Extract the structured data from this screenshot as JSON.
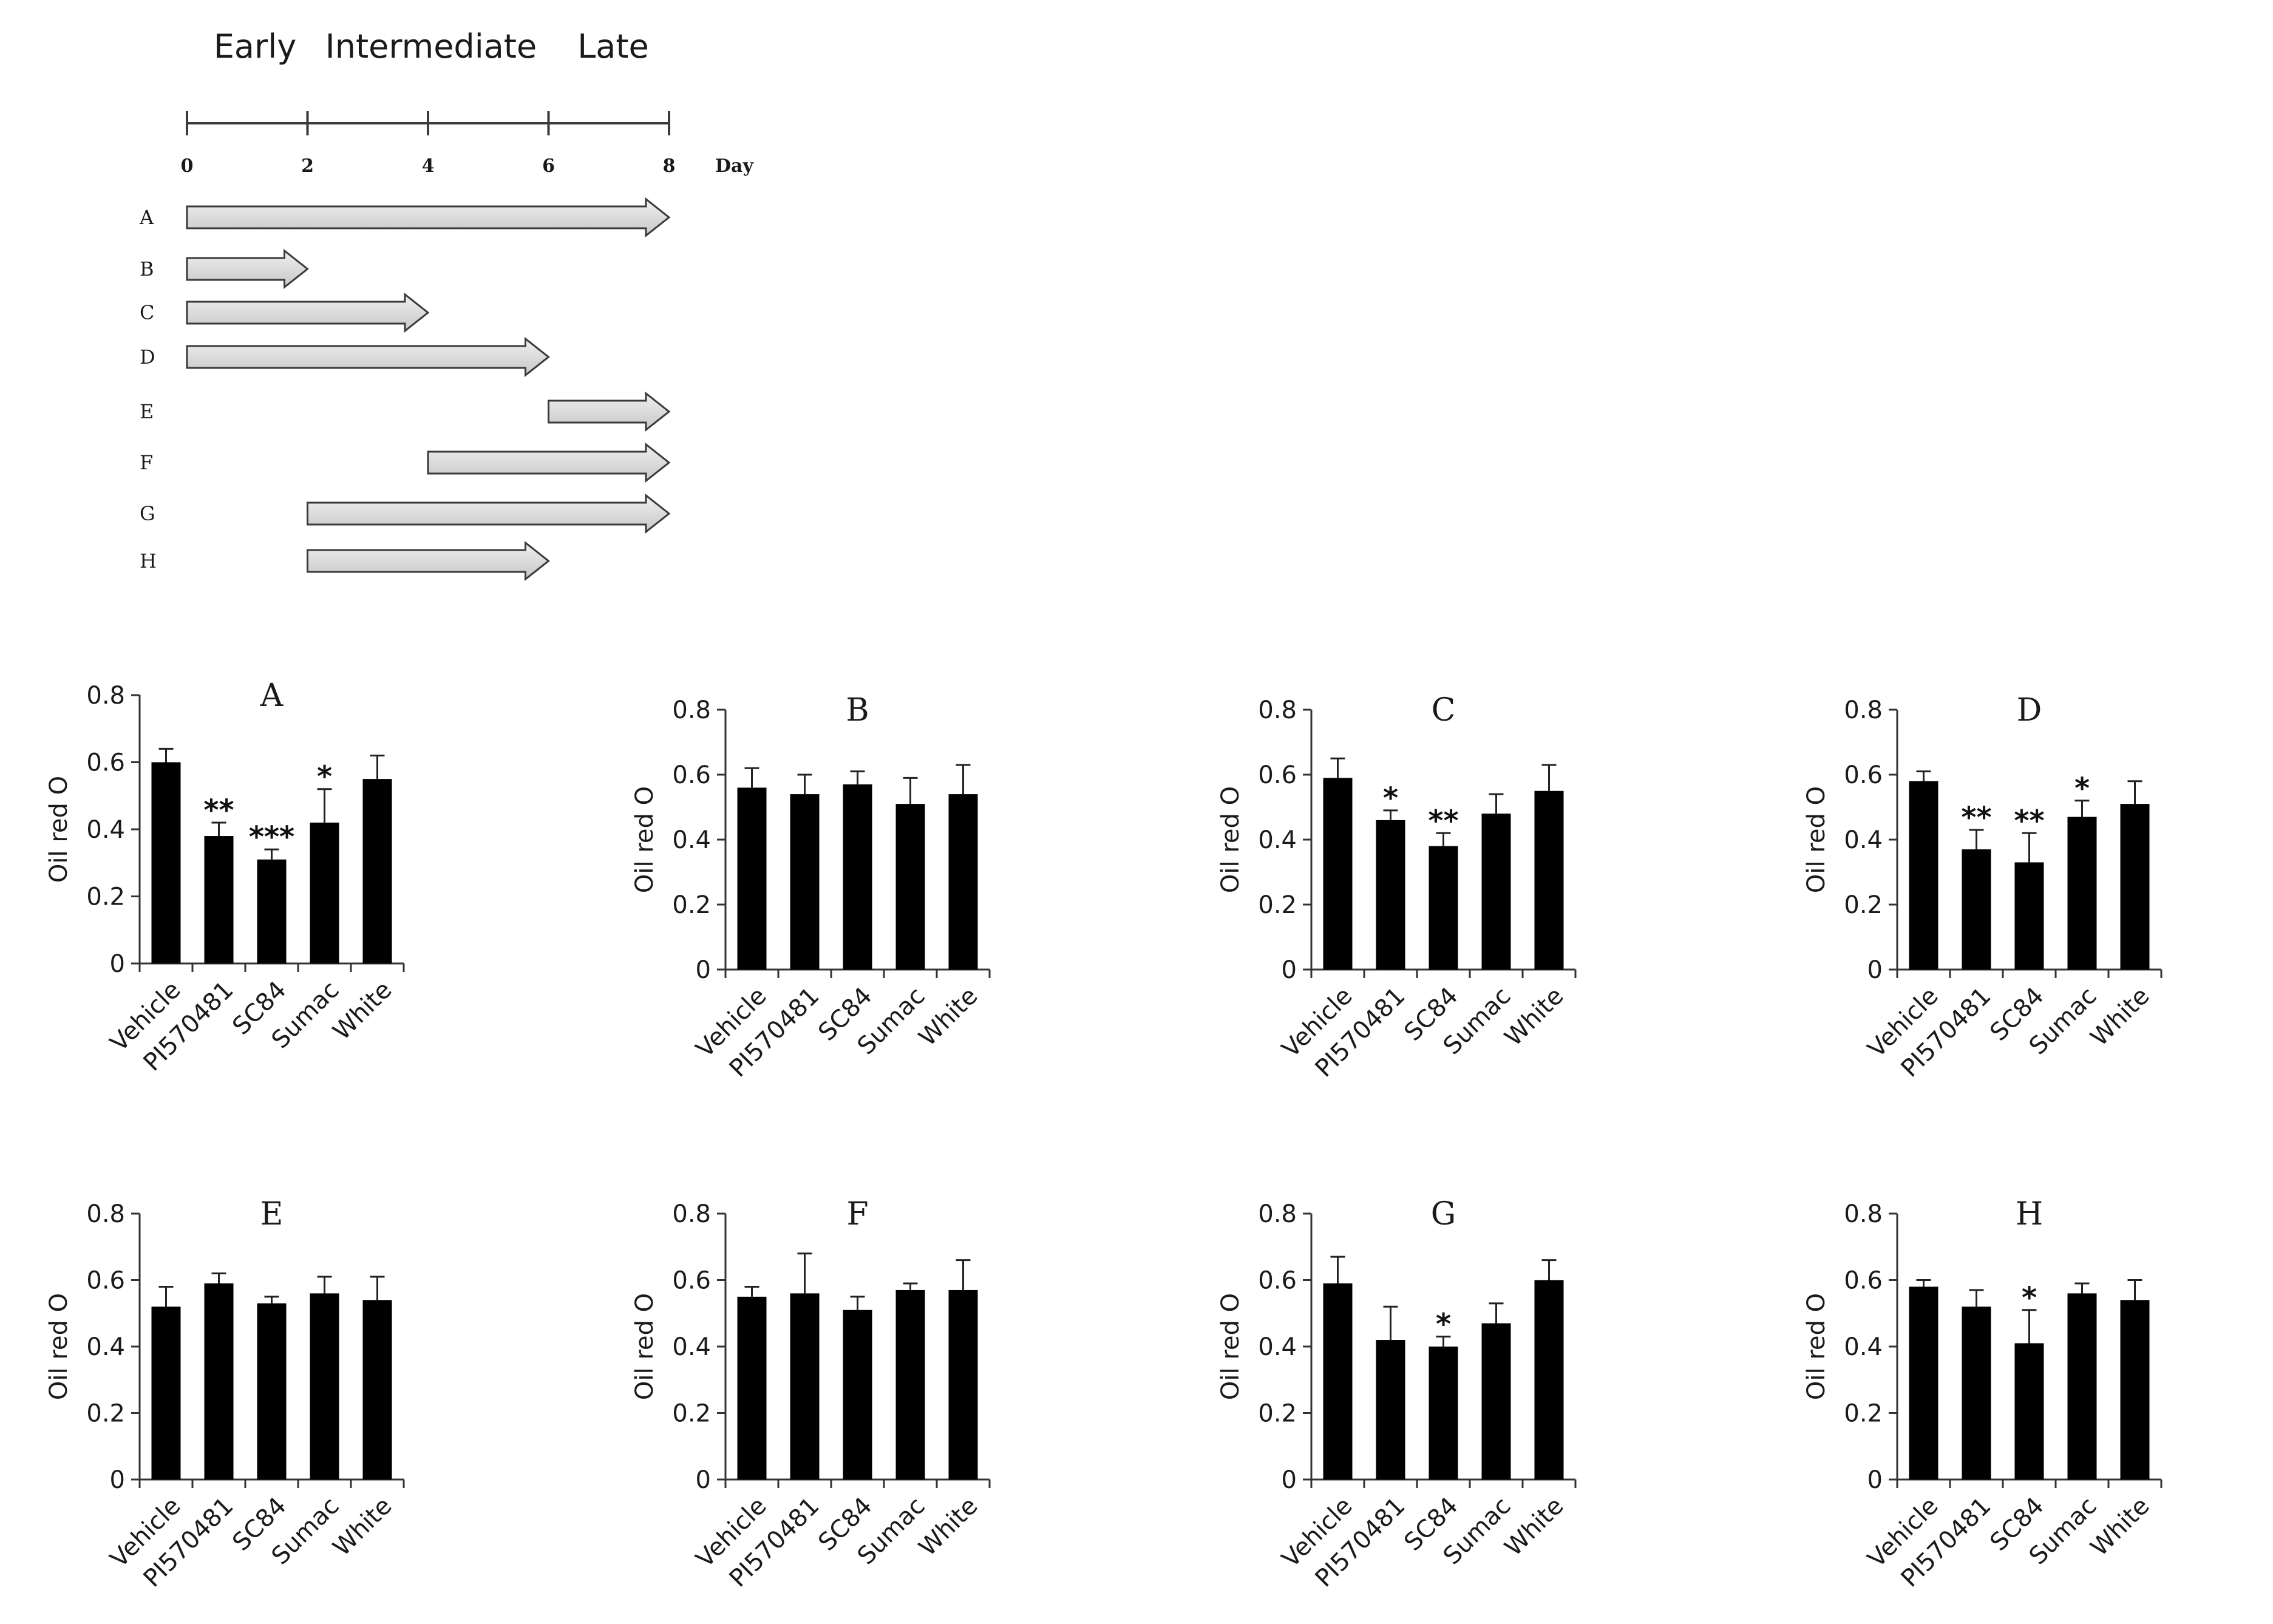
{
  "timeline": {
    "phases": [
      "Early",
      "Intermediate",
      "Late"
    ],
    "day_ticks": [
      "0",
      "2",
      "4",
      "6",
      "8"
    ],
    "day_label": "Day",
    "day_range": [
      0,
      8
    ],
    "treatments": [
      {
        "label": "A",
        "start": 0,
        "end": 8
      },
      {
        "label": "B",
        "start": 0,
        "end": 2
      },
      {
        "label": "C",
        "start": 0,
        "end": 4
      },
      {
        "label": "D",
        "start": 0,
        "end": 6
      },
      {
        "label": "E",
        "start": 6,
        "end": 8
      },
      {
        "label": "F",
        "start": 4,
        "end": 8
      },
      {
        "label": "G",
        "start": 2,
        "end": 8
      },
      {
        "label": "H",
        "start": 2,
        "end": 6
      }
    ],
    "colors": {
      "arrow_fill": "#d9d9d9",
      "arrow_stroke": "#3a3a3a"
    }
  },
  "colors": {
    "bar": "#000000",
    "axis": "#333333",
    "text": "#1a1a1a"
  },
  "chart_data": [
    {
      "type": "bar",
      "title": "A",
      "xlabel": "",
      "ylabel": "Oil red O",
      "ylim": [
        0,
        0.8
      ],
      "yticks": [
        "0",
        "0.2",
        "0.4",
        "0.6",
        "0.8"
      ],
      "categories": [
        "Vehicle",
        "PI570481",
        "SC84",
        "Sumac",
        "White"
      ],
      "values": [
        0.6,
        0.38,
        0.31,
        0.42,
        0.55
      ],
      "errors": [
        0.04,
        0.04,
        0.03,
        0.1,
        0.07
      ],
      "significance": [
        "",
        "**",
        "***",
        "*",
        ""
      ]
    },
    {
      "type": "bar",
      "title": "B",
      "xlabel": "",
      "ylabel": "Oil red O",
      "ylim": [
        0,
        0.8
      ],
      "yticks": [
        "0",
        "0.2",
        "0.4",
        "0.6",
        "0.8"
      ],
      "categories": [
        "Vehicle",
        "PI570481",
        "SC84",
        "Sumac",
        "White"
      ],
      "values": [
        0.56,
        0.54,
        0.57,
        0.51,
        0.54
      ],
      "errors": [
        0.06,
        0.06,
        0.04,
        0.08,
        0.09
      ],
      "significance": [
        "",
        "",
        "",
        "",
        ""
      ]
    },
    {
      "type": "bar",
      "title": "C",
      "xlabel": "",
      "ylabel": "Oil red O",
      "ylim": [
        0,
        0.8
      ],
      "yticks": [
        "0",
        "0.2",
        "0.4",
        "0.6",
        "0.8"
      ],
      "categories": [
        "Vehicle",
        "PI570481",
        "SC84",
        "Sumac",
        "White"
      ],
      "values": [
        0.59,
        0.46,
        0.38,
        0.48,
        0.55
      ],
      "errors": [
        0.06,
        0.03,
        0.04,
        0.06,
        0.08
      ],
      "significance": [
        "",
        "*",
        "**",
        "",
        ""
      ]
    },
    {
      "type": "bar",
      "title": "D",
      "xlabel": "",
      "ylabel": "Oil red O",
      "ylim": [
        0,
        0.8
      ],
      "yticks": [
        "0",
        "0.2",
        "0.4",
        "0.6",
        "0.8"
      ],
      "categories": [
        "Vehicle",
        "PI570481",
        "SC84",
        "Sumac",
        "White"
      ],
      "values": [
        0.58,
        0.37,
        0.33,
        0.47,
        0.51
      ],
      "errors": [
        0.03,
        0.06,
        0.09,
        0.05,
        0.07
      ],
      "significance": [
        "",
        "**",
        "**",
        "*",
        ""
      ]
    },
    {
      "type": "bar",
      "title": "E",
      "xlabel": "",
      "ylabel": "Oil red O",
      "ylim": [
        0,
        0.8
      ],
      "yticks": [
        "0",
        "0.2",
        "0.4",
        "0.6",
        "0.8"
      ],
      "categories": [
        "Vehicle",
        "PI570481",
        "SC84",
        "Sumac",
        "White"
      ],
      "values": [
        0.52,
        0.59,
        0.53,
        0.56,
        0.54
      ],
      "errors": [
        0.06,
        0.03,
        0.02,
        0.05,
        0.07
      ],
      "significance": [
        "",
        "",
        "",
        "",
        ""
      ]
    },
    {
      "type": "bar",
      "title": "F",
      "xlabel": "",
      "ylabel": "Oil red O",
      "ylim": [
        0,
        0.8
      ],
      "yticks": [
        "0",
        "0.2",
        "0.4",
        "0.6",
        "0.8"
      ],
      "categories": [
        "Vehicle",
        "PI570481",
        "SC84",
        "Sumac",
        "White"
      ],
      "values": [
        0.55,
        0.56,
        0.51,
        0.57,
        0.57
      ],
      "errors": [
        0.03,
        0.12,
        0.04,
        0.02,
        0.09
      ],
      "significance": [
        "",
        "",
        "",
        "",
        ""
      ]
    },
    {
      "type": "bar",
      "title": "G",
      "xlabel": "",
      "ylabel": "Oil red O",
      "ylim": [
        0,
        0.8
      ],
      "yticks": [
        "0",
        "0.2",
        "0.4",
        "0.6",
        "0.8"
      ],
      "categories": [
        "Vehicle",
        "PI570481",
        "SC84",
        "Sumac",
        "White"
      ],
      "values": [
        0.59,
        0.42,
        0.4,
        0.47,
        0.6
      ],
      "errors": [
        0.08,
        0.1,
        0.03,
        0.06,
        0.06
      ],
      "significance": [
        "",
        "",
        "*",
        "",
        ""
      ]
    },
    {
      "type": "bar",
      "title": "H",
      "xlabel": "",
      "ylabel": "Oil red O",
      "ylim": [
        0,
        0.8
      ],
      "yticks": [
        "0",
        "0.2",
        "0.4",
        "0.6",
        "0.8"
      ],
      "categories": [
        "Vehicle",
        "PI570481",
        "SC84",
        "Sumac",
        "White"
      ],
      "values": [
        0.58,
        0.52,
        0.41,
        0.56,
        0.54
      ],
      "errors": [
        0.02,
        0.05,
        0.1,
        0.03,
        0.06
      ],
      "significance": [
        "",
        "",
        "*",
        "",
        ""
      ]
    }
  ]
}
